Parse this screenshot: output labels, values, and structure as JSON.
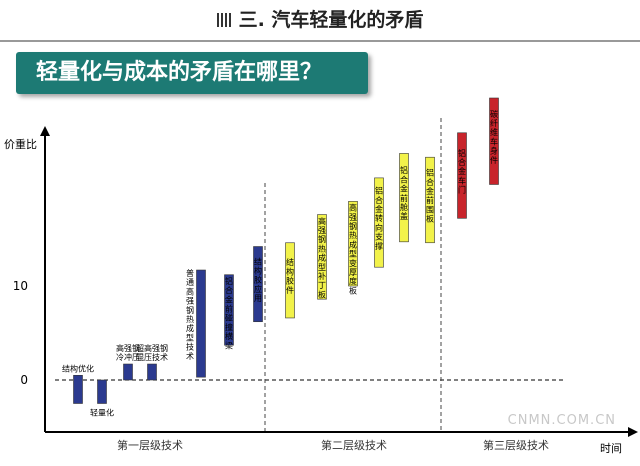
{
  "header": {
    "title": "三. 汽车轻量化的矛盾"
  },
  "banner": {
    "text": "轻量化与成本的矛盾在哪里？"
  },
  "watermark": "CNMN.COM.CN",
  "chart_data": {
    "type": "floating-bar",
    "title": "",
    "ylabel": "价重比",
    "xlabel": "时间",
    "y_ticks": [
      0,
      10
    ],
    "ylim": [
      -5.5,
      28
    ],
    "grid": false,
    "zero_reference_line": "dashed",
    "tiers": [
      {
        "label": "第一层级技术"
      },
      {
        "label": "第二层级技术"
      },
      {
        "label": "第三层级技术"
      }
    ],
    "tier_colors": {
      "1": "#2b3a8f",
      "2": "#f2f24a",
      "3": "#c8242b"
    },
    "bars": [
      {
        "label": "结构优化",
        "tier": 1,
        "low": -2.5,
        "high": 0.5,
        "label_pos": "above"
      },
      {
        "label": "轻量化",
        "tier": 1,
        "low": -2.5,
        "high": 0,
        "label_pos": "below"
      },
      {
        "label": "高强钢冷冲压",
        "tier": 1,
        "low": 0,
        "high": 1.7,
        "label_pos": "above"
      },
      {
        "label": "超高强钢辊压技术",
        "tier": 1,
        "low": 0,
        "high": 1.7,
        "label_pos": "above"
      },
      {
        "label": "普通高强钢热成型技术",
        "tier": 1,
        "low": 0.3,
        "high": 11.7,
        "label_pos": "left"
      },
      {
        "label": "铝合金前碰撞横梁",
        "tier": 1,
        "low": 3.7,
        "high": 11.2,
        "label_pos": "inside"
      },
      {
        "label": "结构胶应用",
        "tier": 1,
        "low": 6.2,
        "high": 14.2,
        "label_pos": "inside"
      },
      {
        "label": "结构胶件",
        "tier": 2,
        "low": 6.6,
        "high": 14.6,
        "label_pos": "inside"
      },
      {
        "label": "高强钢热成型补丁板",
        "tier": 2,
        "low": 8.6,
        "high": 17.6,
        "label_pos": "inside"
      },
      {
        "label": "高强钢热成型变厚度板",
        "tier": 2,
        "low": 10.0,
        "high": 19.0,
        "label_pos": "inside"
      },
      {
        "label": "铝合金转向支撑",
        "tier": 2,
        "low": 12.0,
        "high": 21.5,
        "label_pos": "inside"
      },
      {
        "label": "铝合金前舱盖",
        "tier": 2,
        "low": 14.7,
        "high": 24.1,
        "label_pos": "inside"
      },
      {
        "label": "铝合金前围板",
        "tier": 2,
        "low": 14.6,
        "high": 23.7,
        "label_pos": "inside"
      },
      {
        "label": "铝合金车门",
        "tier": 3,
        "low": 17.2,
        "high": 26.3,
        "label_pos": "inside"
      },
      {
        "label": "碳纤维车身件",
        "tier": 3,
        "low": 20.8,
        "high": 30.0,
        "label_pos": "inside"
      }
    ]
  }
}
